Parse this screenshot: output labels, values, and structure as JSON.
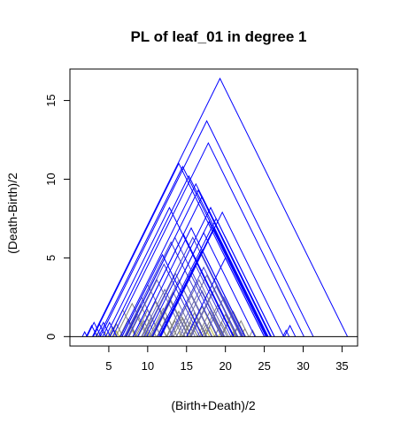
{
  "chart_data": {
    "type": "line",
    "title": "PL of  leaf_01  in degree  1",
    "xlabel": "(Birth+Death)/2",
    "ylabel": "(Death-Birth)/2",
    "xlim": [
      0,
      37
    ],
    "ylim": [
      -0.6,
      17.0
    ],
    "x_ticks": [
      5,
      10,
      15,
      20,
      25,
      30,
      35
    ],
    "y_ticks": [
      0,
      5,
      10,
      15
    ],
    "colors": {
      "primary": "#0000ff",
      "secondary": "#3a3ad8",
      "tertiary": "#6b6bb0",
      "quaternary": "#808080",
      "minor": "#b8b840"
    },
    "series": [
      {
        "color": "primary",
        "peaks": [
          [
            19.3,
            16.4
          ],
          [
            17.6,
            13.7
          ],
          [
            17.8,
            12.3
          ],
          [
            14.0,
            11.0
          ],
          [
            14.5,
            10.8
          ],
          [
            15.3,
            10.2
          ],
          [
            16.2,
            9.7
          ],
          [
            16.5,
            9.3
          ],
          [
            17.0,
            8.9
          ],
          [
            18.1,
            8.2
          ],
          [
            18.8,
            7.5
          ],
          [
            19.6,
            7.9
          ],
          [
            12.8,
            8.2
          ],
          [
            14.6,
            6.5
          ],
          [
            15.6,
            6.9
          ],
          [
            17.2,
            6.6
          ],
          [
            18.5,
            6.9
          ],
          [
            17.9,
            7.3
          ],
          [
            17.0,
            5.5
          ],
          [
            20.0,
            5.0
          ],
          [
            11.9,
            5.2
          ],
          [
            28.3,
            0.7
          ],
          [
            27.8,
            0.4
          ],
          [
            2.8,
            0.7
          ],
          [
            3.1,
            0.9
          ],
          [
            3.8,
            0.8
          ],
          [
            4.3,
            0.9
          ],
          [
            5.1,
            0.9
          ],
          [
            1.9,
            0.3
          ]
        ]
      },
      {
        "color": "secondary",
        "peaks": [
          [
            13.5,
            6.3
          ],
          [
            13.0,
            6.0
          ],
          [
            15.8,
            6.3
          ],
          [
            16.9,
            5.3
          ],
          [
            16.2,
            4.5
          ],
          [
            12.1,
            4.6
          ],
          [
            15.5,
            4.0
          ],
          [
            17.2,
            4.4
          ]
        ]
      },
      {
        "color": "tertiary",
        "peaks": [
          [
            10.0,
            3.3
          ],
          [
            11.2,
            3.6
          ],
          [
            13.6,
            4.0
          ],
          [
            14.0,
            3.6
          ],
          [
            15.0,
            3.3
          ],
          [
            16.6,
            3.6
          ],
          [
            17.6,
            3.9
          ],
          [
            18.3,
            2.8
          ],
          [
            19.8,
            2.5
          ],
          [
            12.2,
            3.0
          ],
          [
            9.2,
            2.5
          ],
          [
            13.3,
            2.8
          ],
          [
            15.6,
            2.6
          ],
          [
            17.0,
            2.9
          ],
          [
            18.8,
            3.2
          ]
        ]
      },
      {
        "color": "quaternary",
        "peaks": [
          [
            6.8,
            1.7
          ],
          [
            8.0,
            2.1
          ],
          [
            9.1,
            2.0
          ],
          [
            10.0,
            1.7
          ],
          [
            11.0,
            2.2
          ],
          [
            12.0,
            1.8
          ],
          [
            13.0,
            2.3
          ],
          [
            14.0,
            1.6
          ],
          [
            15.0,
            2.0
          ],
          [
            16.0,
            1.5
          ],
          [
            17.0,
            1.9
          ],
          [
            18.0,
            1.6
          ],
          [
            19.0,
            2.0
          ],
          [
            20.0,
            1.4
          ],
          [
            21.0,
            1.6
          ],
          [
            22.0,
            1.0
          ],
          [
            7.5,
            1.1
          ],
          [
            8.6,
            1.3
          ],
          [
            9.5,
            1.0
          ],
          [
            10.5,
            1.2
          ],
          [
            11.5,
            0.9
          ],
          [
            12.5,
            1.3
          ],
          [
            13.5,
            1.0
          ],
          [
            14.5,
            1.2
          ],
          [
            15.5,
            0.9
          ],
          [
            16.5,
            1.1
          ],
          [
            17.5,
            0.8
          ],
          [
            18.5,
            1.2
          ],
          [
            19.5,
            0.9
          ],
          [
            20.5,
            1.0
          ],
          [
            6.0,
            0.8
          ],
          [
            5.5,
            0.6
          ],
          [
            21.5,
            0.6
          ],
          [
            22.5,
            0.5
          ],
          [
            23.5,
            0.4
          ]
        ]
      },
      {
        "color": "minor",
        "peaks": [
          [
            4.5,
            0.3
          ],
          [
            6.0,
            0.35
          ],
          [
            8.0,
            0.4
          ],
          [
            10.0,
            0.3
          ],
          [
            12.0,
            0.45
          ],
          [
            14.0,
            0.3
          ],
          [
            16.0,
            0.4
          ],
          [
            18.0,
            0.6
          ],
          [
            17.5,
            0.45
          ],
          [
            19.5,
            0.4
          ],
          [
            21.0,
            0.3
          ],
          [
            3.5,
            0.2
          ]
        ]
      }
    ]
  }
}
